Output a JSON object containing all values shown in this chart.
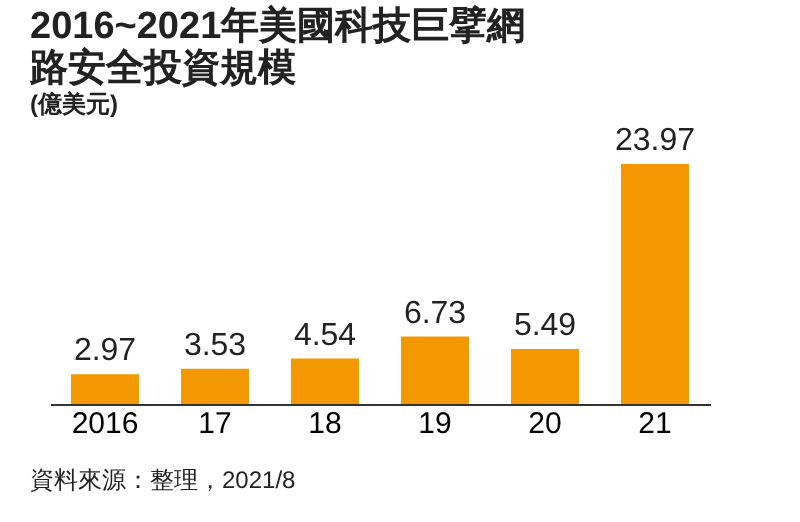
{
  "chart_data": {
    "type": "bar",
    "title": "2016~2021年美國科技巨擘網路安全投資規模",
    "subtitle": "(億美元)",
    "categories": [
      "2016",
      "17",
      "18",
      "19",
      "20",
      "21"
    ],
    "values": [
      2.97,
      3.53,
      4.54,
      6.73,
      5.49,
      23.97
    ],
    "color": "#f39800",
    "data_labels": true,
    "grid": false,
    "annotations": [
      "資料來源：整理，2021/8"
    ]
  }
}
